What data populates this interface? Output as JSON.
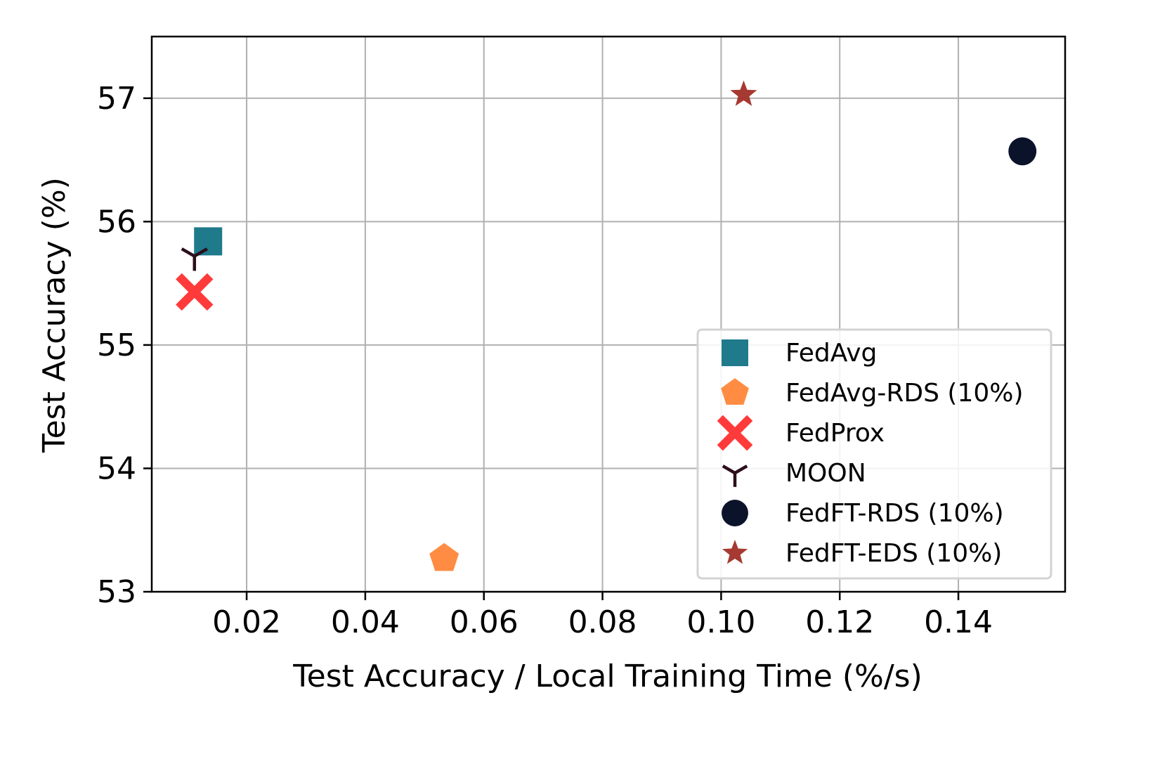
{
  "chart_data": {
    "type": "scatter",
    "title": "",
    "xlabel": "Test Accuracy / Local Training Time (%/s)",
    "ylabel": "Test Accuracy (%)",
    "xlim": [
      0.004,
      0.158
    ],
    "ylim": [
      53,
      57.5
    ],
    "xticks": [
      0.02,
      0.04,
      0.06,
      0.08,
      0.1,
      0.12,
      0.14
    ],
    "xtick_labels": [
      "0.02",
      "0.04",
      "0.06",
      "0.08",
      "0.10",
      "0.12",
      "0.14"
    ],
    "yticks": [
      53,
      54,
      55,
      56,
      57
    ],
    "ytick_labels": [
      "53",
      "54",
      "55",
      "56",
      "57"
    ],
    "grid": true,
    "legend_position": "lower-right",
    "series": [
      {
        "name": "FedAvg",
        "marker": "square",
        "color": "#1f7a8c",
        "x": 0.0135,
        "y": 55.84
      },
      {
        "name": "FedAvg-RDS (10%)",
        "marker": "pentagon",
        "color": "#ff8c42",
        "x": 0.0533,
        "y": 53.27
      },
      {
        "name": "FedProx",
        "marker": "x-filled",
        "color": "#ff3a3a",
        "x": 0.0112,
        "y": 55.43
      },
      {
        "name": "MOON",
        "marker": "tri-down",
        "color": "#2c0e1c",
        "x": 0.0112,
        "y": 55.72
      },
      {
        "name": "FedFT-RDS (10%)",
        "marker": "circle",
        "color": "#0b132b",
        "x": 0.1508,
        "y": 56.57
      },
      {
        "name": "FedFT-EDS (10%)",
        "marker": "star",
        "color": "#a63a32",
        "x": 0.1038,
        "y": 57.03
      }
    ]
  }
}
